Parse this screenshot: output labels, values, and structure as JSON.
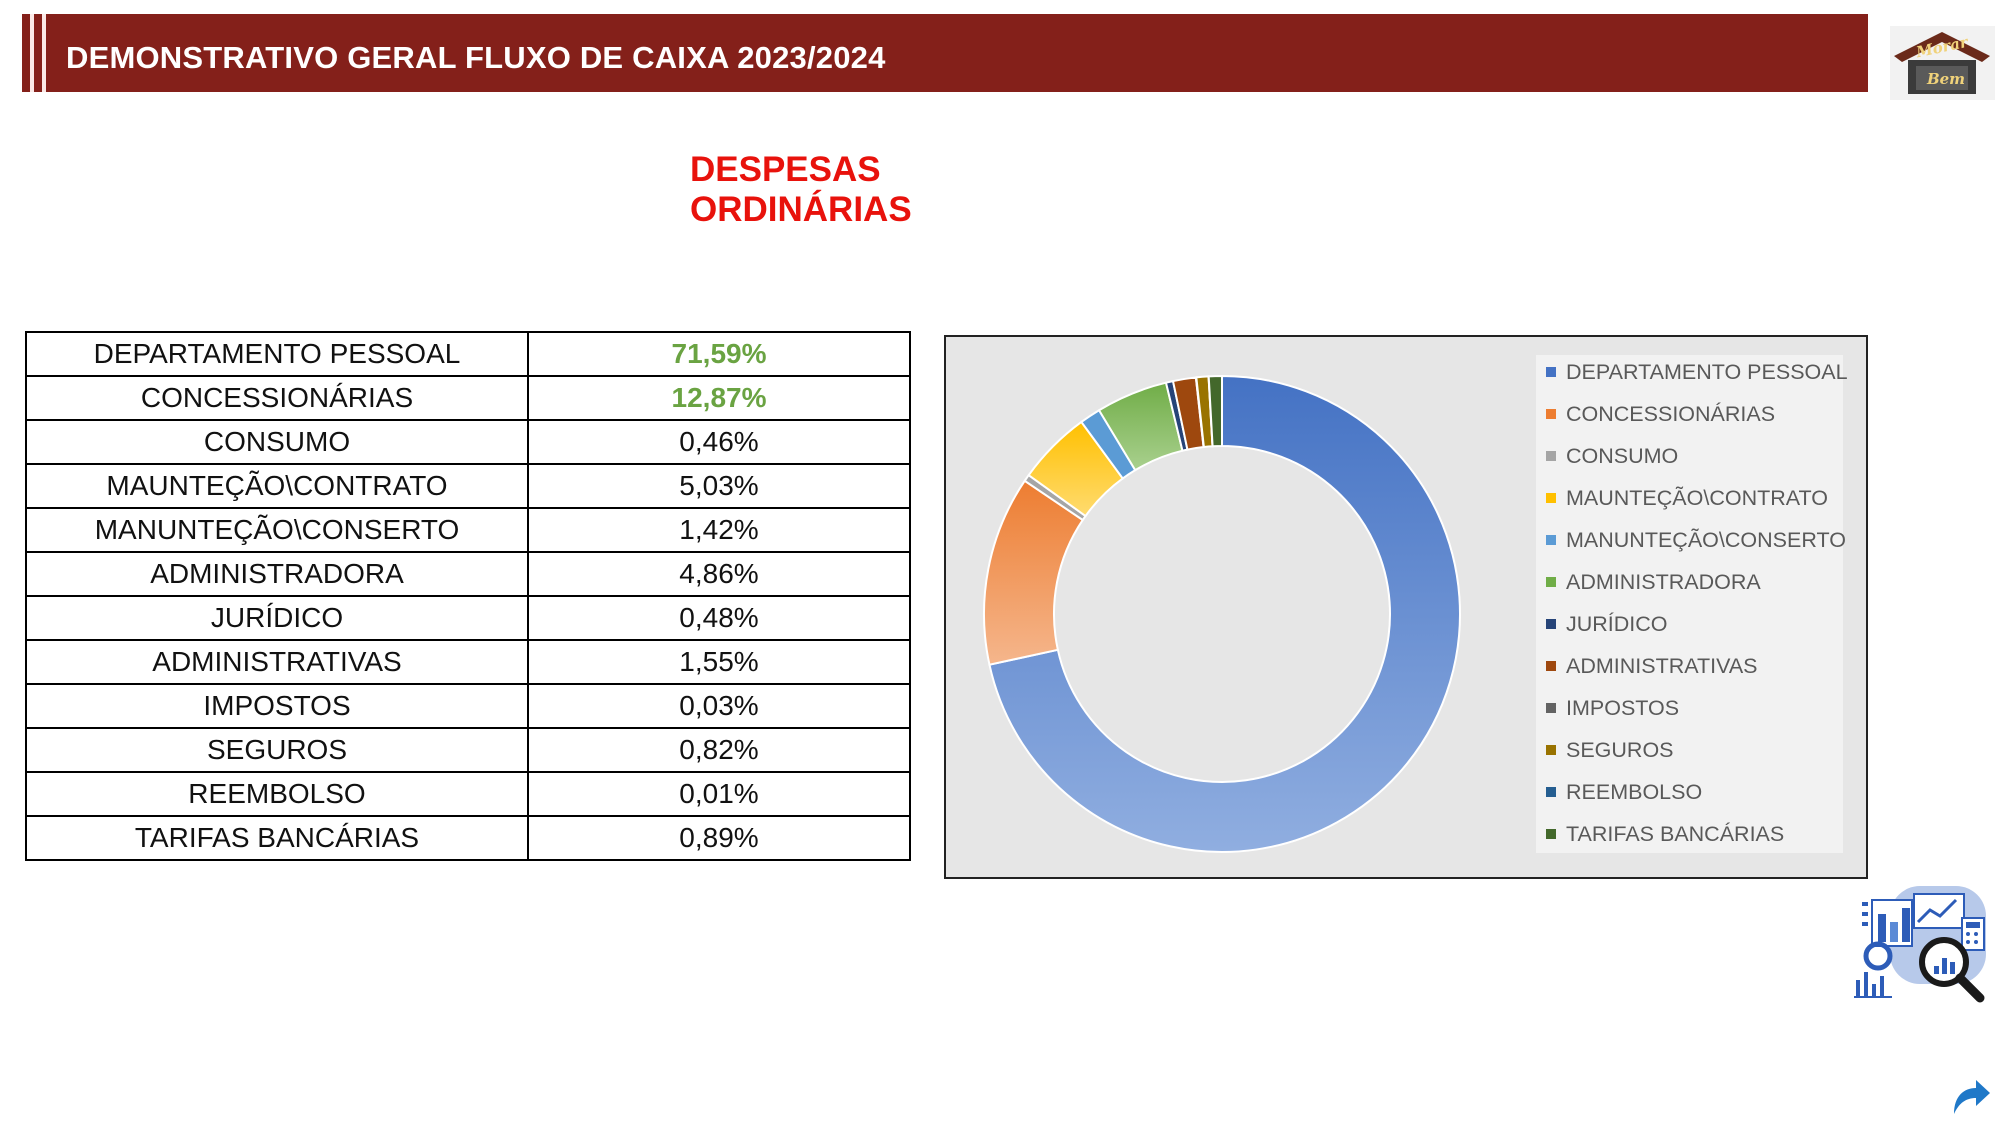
{
  "header": {
    "title": "DEMONSTRATIVO GERAL FLUXO DE CAIXA 2023/2024",
    "background_color": "#84201a",
    "logo": {
      "icon": "house-logo-icon",
      "line1": "Morar",
      "line2": "Bem"
    }
  },
  "subtitle": "DESPESAS ORDINÁRIAS",
  "table": {
    "rows": [
      {
        "label": "DEPARTAMENTO PESSOAL",
        "value": "71,59%",
        "highlight": true
      },
      {
        "label": "CONCESSIONÁRIAS",
        "value": "12,87%",
        "highlight": true
      },
      {
        "label": "CONSUMO",
        "value": "0,46%",
        "highlight": false
      },
      {
        "label": "MAUNTEÇÃO\\CONTRATO",
        "value": "5,03%",
        "highlight": false
      },
      {
        "label": "MANUNTEÇÃO\\CONSERTO",
        "value": "1,42%",
        "highlight": false
      },
      {
        "label": "ADMINISTRADORA",
        "value": "4,86%",
        "highlight": false
      },
      {
        "label": "JURÍDICO",
        "value": "0,48%",
        "highlight": false
      },
      {
        "label": "ADMINISTRATIVAS",
        "value": "1,55%",
        "highlight": false
      },
      {
        "label": "IMPOSTOS",
        "value": "0,03%",
        "highlight": false
      },
      {
        "label": "SEGUROS",
        "value": "0,82%",
        "highlight": false
      },
      {
        "label": "REEMBOLSO",
        "value": "0,01%",
        "highlight": false
      },
      {
        "label": "TARIFAS BANCÁRIAS",
        "value": "0,89%",
        "highlight": false
      }
    ]
  },
  "chart_data": {
    "type": "pie",
    "variant": "donut",
    "title": "",
    "legend_position": "right",
    "categories": [
      "DEPARTAMENTO PESSOAL",
      "CONCESSIONÁRIAS",
      "CONSUMO",
      "MAUNTEÇÃO\\CONTRATO",
      "MANUNTEÇÃO\\CONSERTO",
      "ADMINISTRADORA",
      "JURÍDICO",
      "ADMINISTRATIVAS",
      "IMPOSTOS",
      "SEGUROS",
      "REEMBOLSO",
      "TARIFAS BANCÁRIAS"
    ],
    "values": [
      71.59,
      12.87,
      0.46,
      5.03,
      1.42,
      4.86,
      0.48,
      1.55,
      0.03,
      0.82,
      0.01,
      0.89
    ],
    "colors": [
      "#4472c4",
      "#ed7d31",
      "#a5a5a5",
      "#ffc000",
      "#5b9bd5",
      "#70ad47",
      "#264478",
      "#9e480e",
      "#636363",
      "#997300",
      "#255e91",
      "#43682b"
    ],
    "background_color": "#e6e6e6"
  },
  "icons": {
    "analytics": "analytics-magnifier-icon",
    "share": "share-arrow-icon"
  }
}
